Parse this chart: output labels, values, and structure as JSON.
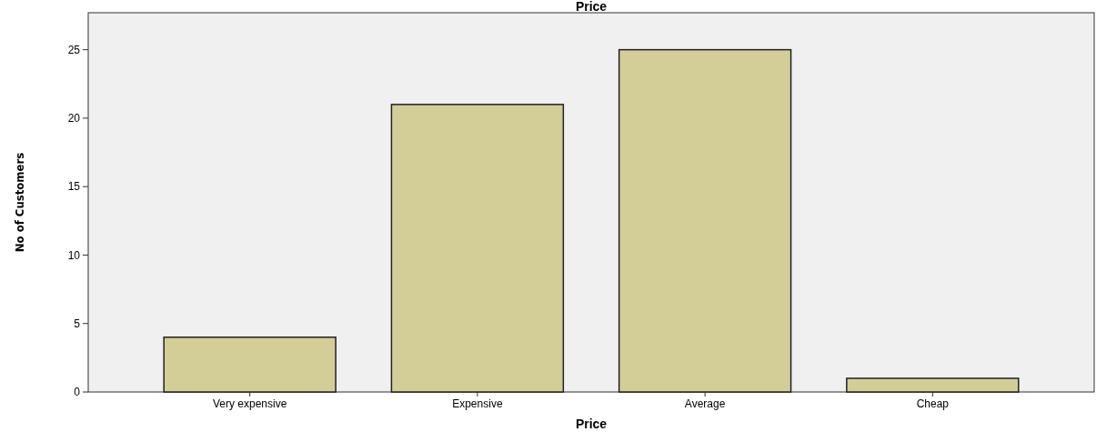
{
  "chart_data": {
    "type": "bar",
    "title": "Price",
    "xlabel": "Price",
    "ylabel": "No of Customers",
    "categories": [
      "Very expensive",
      "Expensive",
      "Average",
      "Cheap"
    ],
    "values": [
      4,
      21,
      25,
      1
    ],
    "color": "#d3cd98",
    "ylim": [
      0,
      27.7
    ],
    "yticks": [
      0,
      5,
      10,
      15,
      20,
      25
    ],
    "grid": false
  }
}
